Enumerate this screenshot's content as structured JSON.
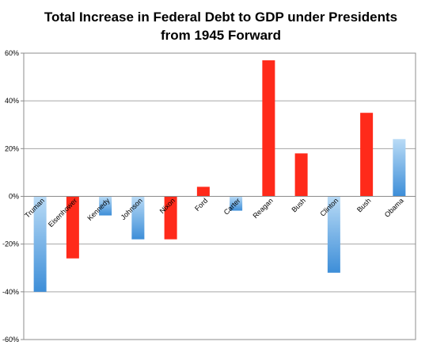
{
  "chart_data": {
    "type": "bar",
    "title_lines": [
      "Total Increase in Federal Debt to GDP under Presidents",
      "from 1945 Forward"
    ],
    "xlabel": "",
    "ylabel": "",
    "ylim": [
      -60,
      60
    ],
    "yticks": [
      60,
      40,
      20,
      0,
      -20,
      -40,
      -60
    ],
    "ytick_labels": [
      "60%",
      "40%",
      "20%",
      "0%",
      "-20%",
      "-40%",
      "-60%"
    ],
    "grid": true,
    "legend": "none",
    "categories": [
      "Truman",
      "Eisenhower",
      "Kennedy",
      "Johnson",
      "Nixon",
      "Ford",
      "Carter",
      "Reagan",
      "Bush",
      "Clinton",
      "Bush",
      "Obama"
    ],
    "values": [
      -40,
      -26,
      -8,
      -18,
      -18,
      4,
      -6,
      57,
      18,
      -32,
      35,
      24
    ],
    "bar_colors": [
      "blue",
      "red",
      "blue",
      "blue",
      "red",
      "red",
      "blue",
      "red",
      "red",
      "blue",
      "red",
      "blue"
    ],
    "colors": {
      "red": "#ff2a1a",
      "blue_dark": "#3d8ed8",
      "blue_light": "#b9dbf6"
    }
  }
}
